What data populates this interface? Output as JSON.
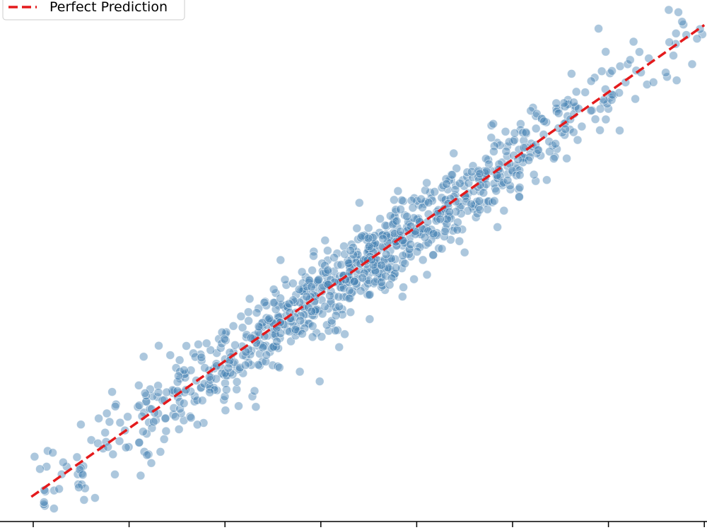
{
  "chart_data": {
    "type": "scatter",
    "title": "",
    "xlabel": "",
    "ylabel": "",
    "xlim": [
      -0.1,
      7.0
    ],
    "ylim": [
      -0.25,
      5.3
    ],
    "x_ticks": [
      0,
      1,
      2,
      3,
      4,
      5,
      6,
      7
    ],
    "y_ticks": [],
    "tick_labels_visible": false,
    "grid": false,
    "legend": {
      "placement": "top-left",
      "entries": [
        "Perfect Prediction"
      ]
    },
    "reference_line": {
      "name": "Perfect Prediction",
      "from": [
        -0.02,
        0.0
      ],
      "to": [
        7.0,
        4.92
      ],
      "color": "#e41a1c",
      "style": "dashed"
    },
    "scatter": {
      "color": "#4682b4",
      "count": 1000,
      "x_range": [
        -0.02,
        7.0
      ],
      "noise_sd": 0.22,
      "slope": 0.7,
      "intercept": 0.0
    },
    "colors": {
      "points": "#4682b4",
      "line": "#e41a1c",
      "axis": "#000000"
    }
  }
}
